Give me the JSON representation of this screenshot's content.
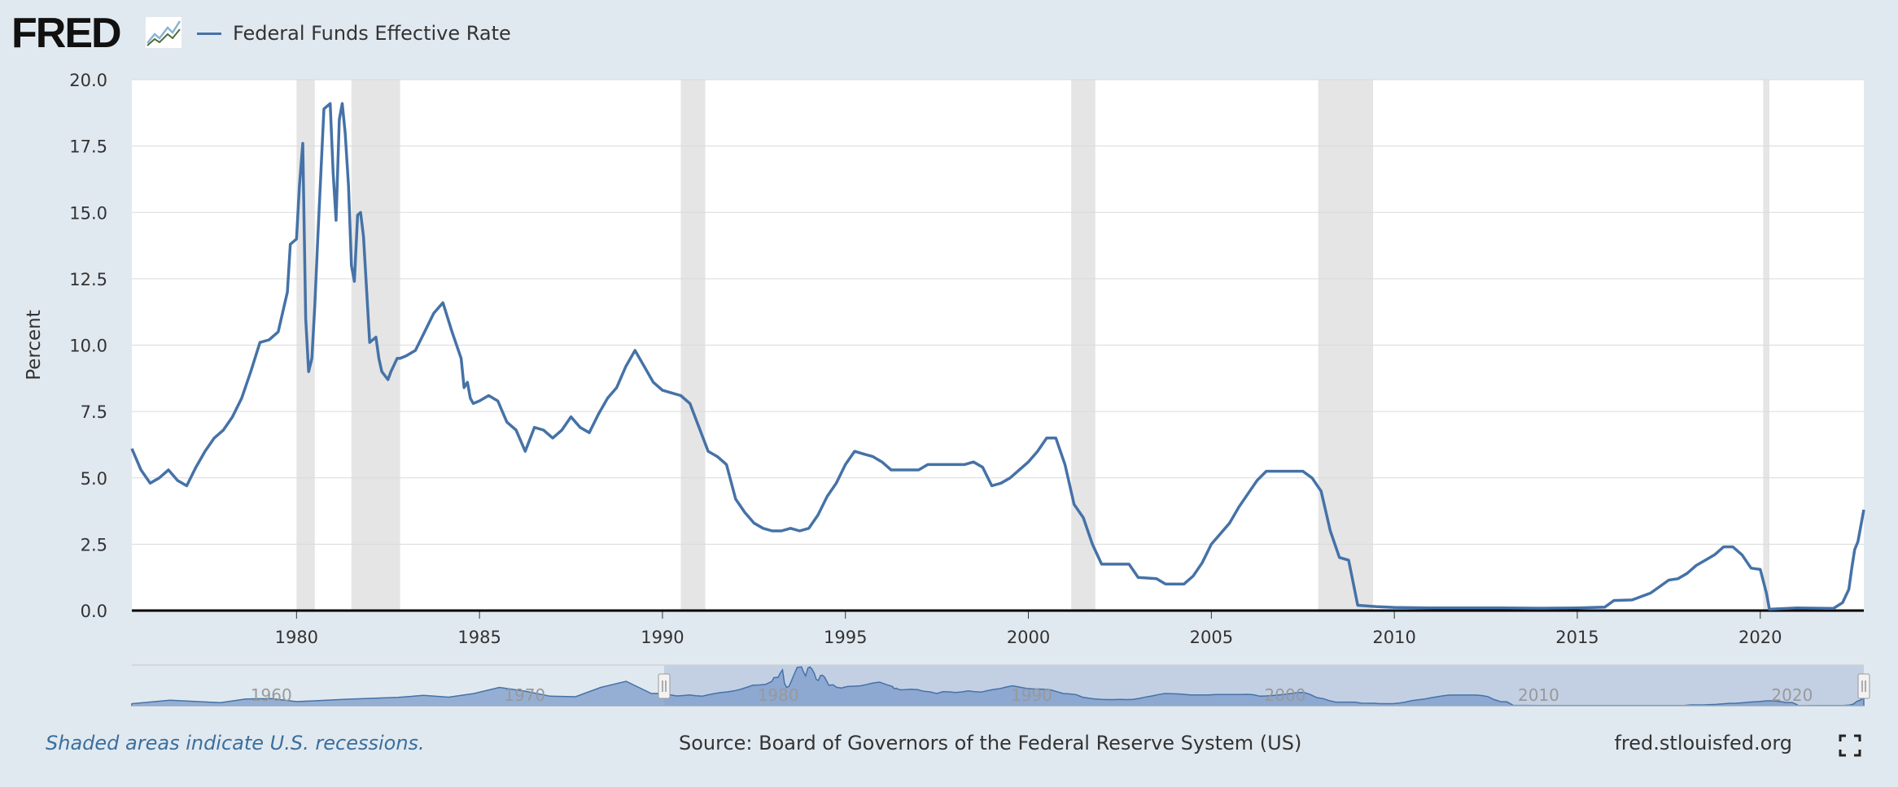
{
  "brand": {
    "logo_text": "FRED",
    "logo_icon": "chart-line-icon"
  },
  "legend": {
    "series_label": "Federal Funds Effective Rate",
    "series_color": "#4572a7"
  },
  "footer": {
    "recession_note": "Shaded areas indicate U.S. recessions.",
    "source": "Source: Board of Governors of the Federal Reserve System (US)",
    "site": "fred.stlouisfed.org",
    "fullscreen_icon": "fullscreen-icon"
  },
  "colors": {
    "background": "#e1e9f0",
    "plot_background": "#ffffff",
    "series": "#4572a7",
    "recession": "#e5e5e5",
    "navigator_fill": "#c3d0e4",
    "navigator_area": "#7b9bcb"
  },
  "chart_data": {
    "type": "line",
    "title": "Federal Funds Effective Rate",
    "xlabel": "",
    "ylabel": "Percent",
    "xlim": [
      1975.5,
      2022.83
    ],
    "ylim": [
      0,
      20
    ],
    "y_ticks": [
      0.0,
      2.5,
      5.0,
      7.5,
      10.0,
      12.5,
      15.0,
      17.5,
      20.0
    ],
    "y_tick_labels": [
      "0.0",
      "2.5",
      "5.0",
      "7.5",
      "10.0",
      "12.5",
      "15.0",
      "17.5",
      "20.0"
    ],
    "x_ticks": [
      1980,
      1985,
      1990,
      1995,
      2000,
      2005,
      2010,
      2015,
      2020
    ],
    "x_tick_labels": [
      "1980",
      "1985",
      "1990",
      "1995",
      "2000",
      "2005",
      "2010",
      "2015",
      "2020"
    ],
    "grid": true,
    "recessions": [
      [
        1980.0,
        1980.5
      ],
      [
        1981.5,
        1982.83
      ],
      [
        1990.5,
        1991.17
      ],
      [
        2001.17,
        2001.83
      ],
      [
        2007.92,
        2009.42
      ],
      [
        2020.08,
        2020.25
      ]
    ],
    "series": [
      {
        "name": "Federal Funds Effective Rate",
        "x": [
          1975.5,
          1975.75,
          1976.0,
          1976.25,
          1976.5,
          1976.75,
          1977.0,
          1977.25,
          1977.5,
          1977.75,
          1978.0,
          1978.25,
          1978.5,
          1978.75,
          1979.0,
          1979.25,
          1979.5,
          1979.75,
          1979.83,
          1980.0,
          1980.08,
          1980.17,
          1980.25,
          1980.33,
          1980.42,
          1980.5,
          1980.58,
          1980.75,
          1980.92,
          1981.0,
          1981.08,
          1981.17,
          1981.25,
          1981.33,
          1981.42,
          1981.5,
          1981.58,
          1981.67,
          1981.75,
          1981.83,
          1982.0,
          1982.17,
          1982.25,
          1982.33,
          1982.5,
          1982.58,
          1982.75,
          1982.83,
          1983.0,
          1983.25,
          1983.5,
          1983.75,
          1984.0,
          1984.25,
          1984.5,
          1984.58,
          1984.67,
          1984.75,
          1984.83,
          1985.0,
          1985.25,
          1985.5,
          1985.75,
          1986.0,
          1986.25,
          1986.5,
          1986.75,
          1987.0,
          1987.25,
          1987.5,
          1987.75,
          1988.0,
          1988.25,
          1988.5,
          1988.75,
          1989.0,
          1989.25,
          1989.5,
          1989.75,
          1990.0,
          1990.25,
          1990.5,
          1990.75,
          1991.0,
          1991.25,
          1991.5,
          1991.75,
          1992.0,
          1992.25,
          1992.5,
          1992.75,
          1993.0,
          1993.25,
          1993.5,
          1993.75,
          1994.0,
          1994.25,
          1994.5,
          1994.75,
          1995.0,
          1995.25,
          1995.5,
          1995.75,
          1996.0,
          1996.25,
          1996.5,
          1996.75,
          1997.0,
          1997.25,
          1997.5,
          1997.75,
          1998.0,
          1998.25,
          1998.5,
          1998.75,
          1999.0,
          1999.25,
          1999.5,
          1999.75,
          2000.0,
          2000.25,
          2000.5,
          2000.75,
          2001.0,
          2001.25,
          2001.5,
          2001.75,
          2002.0,
          2002.5,
          2002.75,
          2003.0,
          2003.5,
          2003.75,
          2004.0,
          2004.25,
          2004.5,
          2004.75,
          2005.0,
          2005.25,
          2005.5,
          2005.75,
          2006.0,
          2006.25,
          2006.5,
          2006.75,
          2007.0,
          2007.5,
          2007.75,
          2008.0,
          2008.25,
          2008.5,
          2008.75,
          2009.0,
          2009.5,
          2010.0,
          2011.0,
          2012.0,
          2013.0,
          2014.0,
          2015.0,
          2015.75,
          2016.0,
          2016.5,
          2017.0,
          2017.25,
          2017.5,
          2017.75,
          2018.0,
          2018.25,
          2018.5,
          2018.75,
          2019.0,
          2019.25,
          2019.5,
          2019.75,
          2020.0,
          2020.17,
          2020.25,
          2021.0,
          2022.0,
          2022.25,
          2022.42,
          2022.5,
          2022.58,
          2022.67,
          2022.75,
          2022.83
        ],
        "values": [
          6.1,
          5.3,
          4.8,
          5.0,
          5.3,
          4.9,
          4.7,
          5.4,
          6.0,
          6.5,
          6.8,
          7.3,
          8.0,
          9.0,
          10.1,
          10.2,
          10.5,
          12.0,
          13.8,
          14.0,
          16.0,
          17.6,
          11.0,
          9.0,
          9.5,
          11.5,
          14.0,
          18.9,
          19.1,
          16.5,
          14.7,
          18.5,
          19.1,
          18.0,
          16.0,
          13.0,
          12.4,
          14.9,
          15.0,
          14.1,
          10.1,
          10.3,
          9.5,
          9.0,
          8.7,
          9.0,
          9.5,
          9.5,
          9.6,
          9.8,
          10.5,
          11.2,
          11.6,
          10.5,
          9.5,
          8.4,
          8.6,
          8.0,
          7.8,
          7.9,
          8.1,
          7.9,
          7.1,
          6.8,
          6.0,
          6.9,
          6.8,
          6.5,
          6.8,
          7.3,
          6.9,
          6.7,
          7.4,
          8.0,
          8.4,
          9.2,
          9.8,
          9.2,
          8.6,
          8.3,
          8.2,
          8.1,
          7.8,
          6.9,
          6.0,
          5.8,
          5.5,
          4.2,
          3.7,
          3.3,
          3.1,
          3.0,
          3.0,
          3.1,
          3.0,
          3.1,
          3.6,
          4.3,
          4.8,
          5.5,
          6.0,
          5.9,
          5.8,
          5.6,
          5.3,
          5.3,
          5.3,
          5.3,
          5.5,
          5.5,
          5.5,
          5.5,
          5.5,
          5.6,
          5.4,
          4.7,
          4.8,
          5.0,
          5.3,
          5.6,
          6.0,
          6.5,
          6.5,
          5.5,
          4.0,
          3.5,
          2.5,
          1.75,
          1.75,
          1.75,
          1.25,
          1.2,
          1.0,
          1.0,
          1.0,
          1.3,
          1.8,
          2.5,
          2.9,
          3.3,
          3.9,
          4.4,
          4.9,
          5.25,
          5.25,
          5.25,
          5.25,
          5.0,
          4.5,
          3.0,
          2.0,
          1.9,
          0.2,
          0.15,
          0.12,
          0.1,
          0.1,
          0.1,
          0.09,
          0.1,
          0.13,
          0.38,
          0.4,
          0.66,
          0.9,
          1.15,
          1.2,
          1.4,
          1.7,
          1.9,
          2.1,
          2.4,
          2.4,
          2.1,
          1.6,
          1.55,
          0.65,
          0.05,
          0.1,
          0.08,
          0.3,
          0.8,
          1.6,
          2.3,
          2.6,
          3.2,
          3.8
        ]
      }
    ],
    "navigator": {
      "xlim": [
        1954.5,
        2022.83
      ],
      "x_tick_labels": [
        "1960",
        "1970",
        "1980",
        "1990",
        "2000",
        "2010",
        "2020"
      ],
      "selected_range": [
        1975.5,
        2022.83
      ]
    }
  }
}
